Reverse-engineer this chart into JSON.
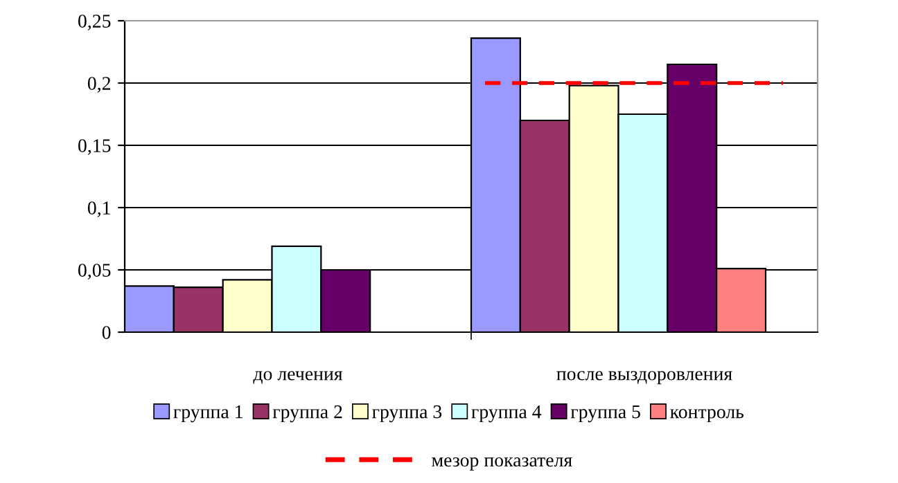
{
  "chart_data": {
    "type": "bar",
    "categories": [
      "до лечения",
      "после выздоровления"
    ],
    "series": [
      {
        "name": "группа 1",
        "color": "#9999ff",
        "values": [
          0.037,
          0.236
        ]
      },
      {
        "name": "группа 2",
        "color": "#993366",
        "values": [
          0.036,
          0.17
        ]
      },
      {
        "name": "группа 3",
        "color": "#ffffcc",
        "values": [
          0.042,
          0.198
        ]
      },
      {
        "name": "группа 4",
        "color": "#ccffff",
        "values": [
          0.069,
          0.175
        ]
      },
      {
        "name": "группа 5",
        "color": "#660066",
        "values": [
          0.05,
          0.215
        ]
      },
      {
        "name": "контроль",
        "color": "#ff8080",
        "values": [
          null,
          0.051
        ]
      }
    ],
    "ylim": [
      0,
      0.25
    ],
    "yticks": [
      {
        "value": 0,
        "label": "0"
      },
      {
        "value": 0.05,
        "label": "0,05"
      },
      {
        "value": 0.1,
        "label": "0,1"
      },
      {
        "value": 0.15,
        "label": "0,15"
      },
      {
        "value": 0.2,
        "label": "0,2"
      },
      {
        "value": 0.25,
        "label": "0,25"
      }
    ],
    "ref_lines": [
      {
        "axis": "y",
        "value": 0.2,
        "label": "мезор показателя",
        "color": "#ff0000",
        "line_style": "dashed"
      }
    ],
    "grid": "y",
    "legend": "bottom"
  }
}
